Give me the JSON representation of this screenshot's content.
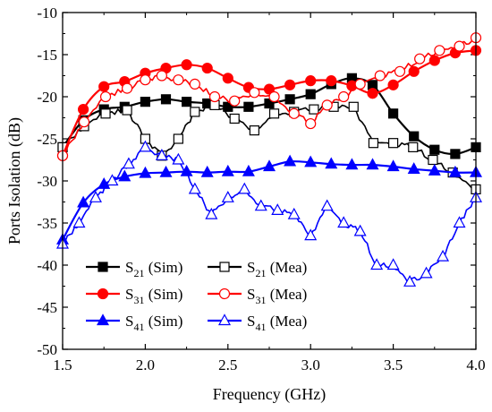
{
  "chart_data": {
    "type": "line",
    "xlabel": "Frequency (GHz)",
    "ylabel": "Ports Isolation (dB)",
    "xlim": [
      1.5,
      4.0
    ],
    "ylim": [
      -50,
      -10
    ],
    "xticks": [
      "1.5",
      "2.0",
      "2.5",
      "3.0",
      "3.5",
      "4.0"
    ],
    "yticks": [
      "-10",
      "-15",
      "-20",
      "-25",
      "-30",
      "-35",
      "-40",
      "-45",
      "-50"
    ],
    "grid": false,
    "legend_position": "bottom-left",
    "series": [
      {
        "name": "S21 (Sim)",
        "label_main": "S",
        "label_sub": "21",
        "label_suffix": " (Sim)",
        "color": "#000000",
        "marker": "square-filled",
        "x": [
          1.5,
          1.625,
          1.75,
          1.875,
          2.0,
          2.125,
          2.25,
          2.375,
          2.5,
          2.625,
          2.75,
          2.875,
          3.0,
          3.125,
          3.25,
          3.375,
          3.5,
          3.625,
          3.75,
          3.875,
          4.0
        ],
        "y": [
          -26,
          -22.8,
          -21.5,
          -21.2,
          -20.6,
          -20.3,
          -20.6,
          -20.8,
          -21.2,
          -21.2,
          -20.8,
          -20.3,
          -19.7,
          -18.5,
          -17.8,
          -18.6,
          -22,
          -24.7,
          -26.3,
          -26.8,
          -26
        ]
      },
      {
        "name": "S21 (Mea)",
        "label_main": "S",
        "label_sub": "21",
        "label_suffix": " (Mea)",
        "color": "#000000",
        "marker": "square-open",
        "x": [
          1.5,
          1.63,
          1.76,
          1.89,
          2.0,
          2.1,
          2.2,
          2.3,
          2.42,
          2.54,
          2.66,
          2.78,
          2.9,
          3.02,
          3.14,
          3.26,
          3.38,
          3.5,
          3.62,
          3.74,
          3.86,
          4.0
        ],
        "y": [
          -26,
          -23.5,
          -22,
          -21.6,
          -25,
          -27,
          -25,
          -21.8,
          -21,
          -22.6,
          -24,
          -22,
          -21.8,
          -21.5,
          -21.2,
          -21.2,
          -25.5,
          -25.5,
          -26,
          -27.5,
          -29,
          -31
        ]
      },
      {
        "name": "S31 (Sim)",
        "label_main": "S",
        "label_sub": "31",
        "label_suffix": " (Sim)",
        "color": "#ff0000",
        "marker": "circle-filled",
        "x": [
          1.5,
          1.625,
          1.75,
          1.875,
          2.0,
          2.125,
          2.25,
          2.375,
          2.5,
          2.625,
          2.75,
          2.875,
          3.0,
          3.125,
          3.25,
          3.375,
          3.5,
          3.625,
          3.75,
          3.875,
          4.0
        ],
        "y": [
          -27,
          -21.5,
          -18.8,
          -18.2,
          -17.2,
          -16.6,
          -16.2,
          -16.6,
          -17.8,
          -18.9,
          -19.1,
          -18.6,
          -18.1,
          -18.1,
          -18.7,
          -19.6,
          -18.6,
          -17,
          -15.7,
          -14.8,
          -14.5
        ]
      },
      {
        "name": "S31 (Mea)",
        "label_main": "S",
        "label_sub": "31",
        "label_suffix": " (Mea)",
        "color": "#ff0000",
        "marker": "circle-open",
        "x": [
          1.5,
          1.63,
          1.76,
          1.89,
          2.0,
          2.1,
          2.2,
          2.3,
          2.42,
          2.54,
          2.66,
          2.78,
          2.9,
          3.0,
          3.1,
          3.2,
          3.3,
          3.42,
          3.54,
          3.66,
          3.78,
          3.9,
          4.0
        ],
        "y": [
          -27,
          -23,
          -20,
          -19,
          -18,
          -17.5,
          -18,
          -18.5,
          -20,
          -20.5,
          -19.5,
          -20,
          -22,
          -23.2,
          -21,
          -20,
          -18.5,
          -17.5,
          -17,
          -15.5,
          -14.5,
          -14,
          -13
        ]
      },
      {
        "name": "S41 (Sim)",
        "label_main": "S",
        "label_sub": "41",
        "label_suffix": " (Sim)",
        "color": "#0000ff",
        "marker": "triangle-filled",
        "x": [
          1.5,
          1.625,
          1.75,
          1.875,
          2.0,
          2.125,
          2.25,
          2.375,
          2.5,
          2.625,
          2.75,
          2.875,
          3.0,
          3.125,
          3.25,
          3.375,
          3.5,
          3.625,
          3.75,
          3.875,
          4.0
        ],
        "y": [
          -37,
          -32.6,
          -30.4,
          -29.5,
          -29.1,
          -29,
          -28.9,
          -29,
          -28.9,
          -28.9,
          -28.3,
          -27.7,
          -27.8,
          -28,
          -28.1,
          -28.1,
          -28.3,
          -28.6,
          -28.8,
          -29,
          -29
        ]
      },
      {
        "name": "S41 (Mea)",
        "label_main": "S",
        "label_sub": "41",
        "label_suffix": " (Mea)",
        "color": "#0000ff",
        "marker": "triangle-open",
        "x": [
          1.5,
          1.6,
          1.7,
          1.8,
          1.9,
          2.0,
          2.1,
          2.2,
          2.3,
          2.4,
          2.5,
          2.6,
          2.7,
          2.8,
          2.9,
          3.0,
          3.1,
          3.2,
          3.3,
          3.4,
          3.5,
          3.6,
          3.7,
          3.8,
          3.9,
          4.0
        ],
        "y": [
          -37.5,
          -35,
          -32,
          -30,
          -28,
          -26,
          -27,
          -27.5,
          -31,
          -34,
          -32,
          -31,
          -33,
          -33.5,
          -34,
          -36.5,
          -33,
          -35,
          -36,
          -40,
          -40,
          -42,
          -41,
          -39,
          -35,
          -32
        ]
      }
    ]
  }
}
